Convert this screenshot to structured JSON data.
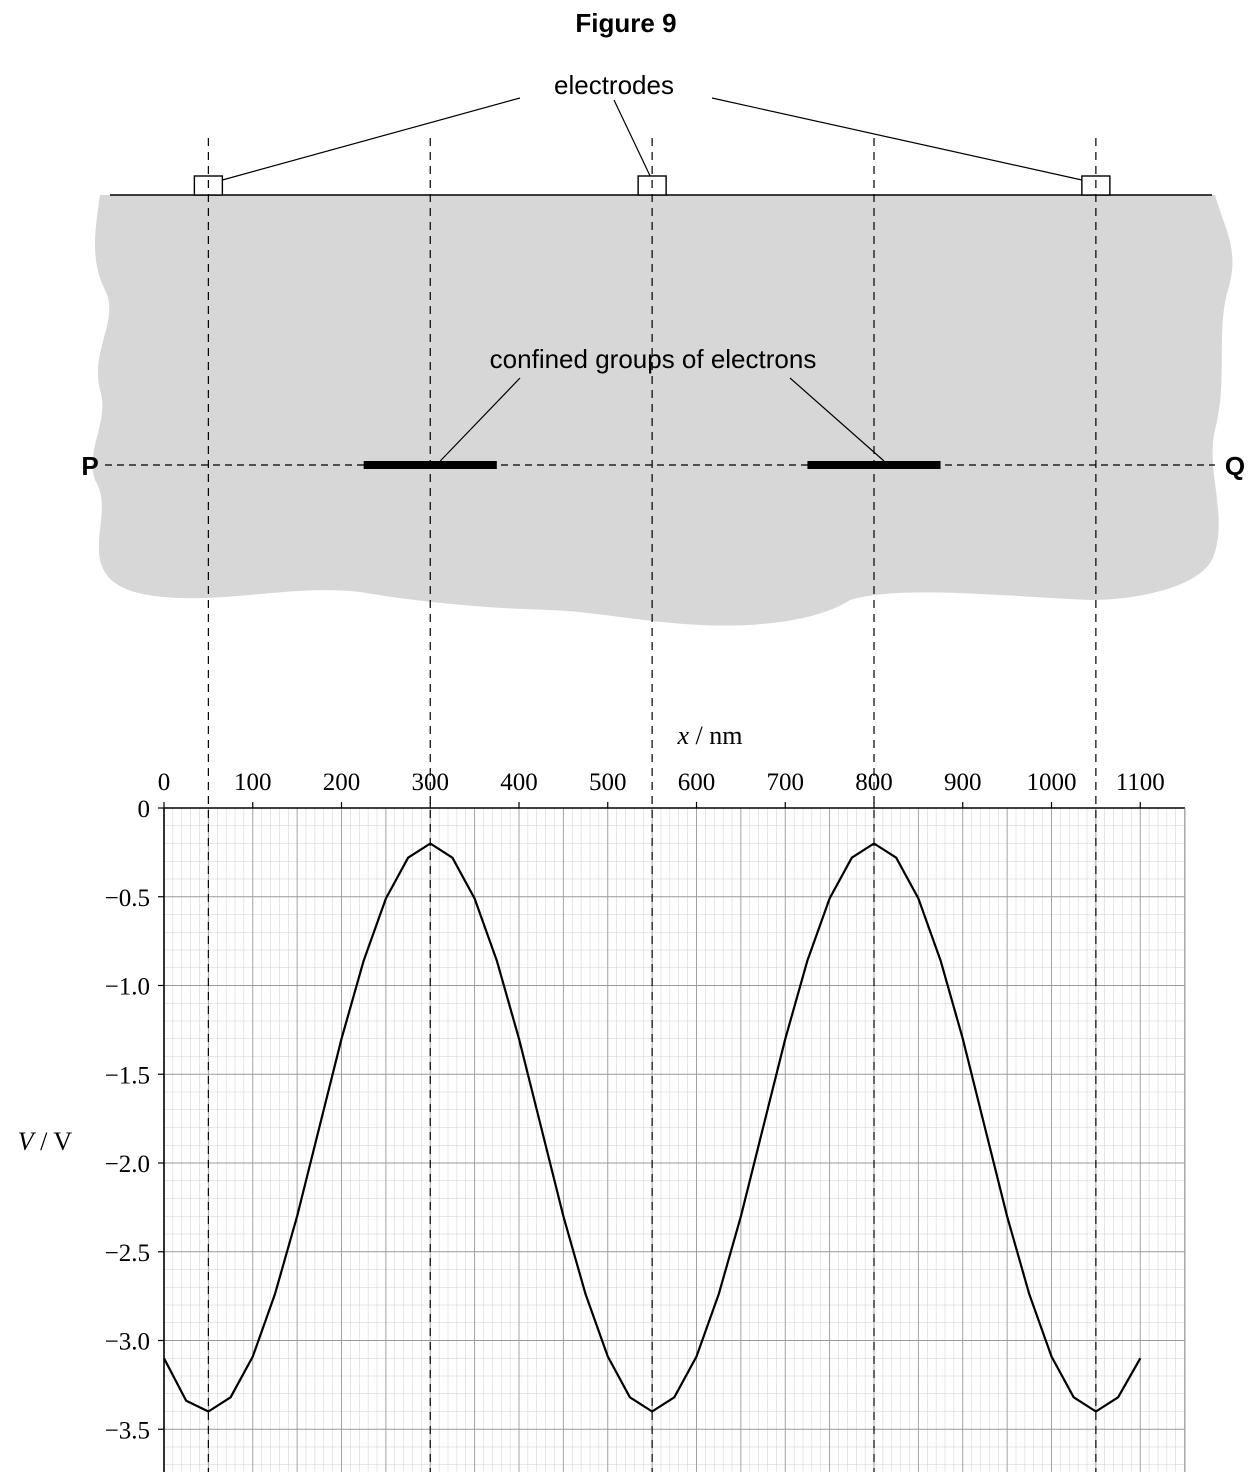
{
  "figure_title": "Figure 9",
  "diagram": {
    "electrodes_label": "electrodes",
    "electrons_label": "confined groups of electrons",
    "left_end_label": "P",
    "right_end_label": "Q"
  },
  "chart_data": {
    "type": "line",
    "title": "",
    "xlabel_var": "x",
    "xlabel_unit": " / nm",
    "ylabel_var": "V",
    "ylabel_unit": " / V",
    "xlim": [
      0,
      1150
    ],
    "ylim": [
      -3.7,
      0
    ],
    "x_ticks": [
      "0",
      "100",
      "200",
      "300",
      "400",
      "500",
      "600",
      "700",
      "800",
      "900",
      "1000",
      "1100"
    ],
    "y_ticks": [
      "0",
      "−0.5",
      "−1.0",
      "−1.5",
      "−2.0",
      "−2.5",
      "−3.0",
      "−3.5"
    ],
    "y_tick_values": [
      0,
      -0.5,
      -1.0,
      -1.5,
      -2.0,
      -2.5,
      -3.0,
      -3.5
    ],
    "series": [
      {
        "x": [
          0,
          25,
          50,
          75,
          100,
          125,
          150,
          175,
          200,
          225,
          250,
          275,
          300,
          325,
          350,
          375,
          400,
          425,
          450,
          475,
          500,
          525,
          550,
          575,
          600,
          625,
          650,
          675,
          700,
          725,
          750,
          775,
          800,
          825,
          850,
          875,
          900,
          925,
          950,
          975,
          1000,
          1025,
          1050,
          1075,
          1100
        ],
        "values": [
          -3.1,
          -3.34,
          -3.4,
          -3.32,
          -3.09,
          -2.74,
          -2.3,
          -1.8,
          -1.3,
          -0.86,
          -0.51,
          -0.28,
          -0.2,
          -0.28,
          -0.51,
          -0.86,
          -1.3,
          -1.8,
          -2.3,
          -2.74,
          -3.09,
          -3.32,
          -3.4,
          -3.32,
          -3.09,
          -2.74,
          -2.3,
          -1.8,
          -1.3,
          -0.86,
          -0.51,
          -0.28,
          -0.2,
          -0.28,
          -0.51,
          -0.86,
          -1.3,
          -1.8,
          -2.3,
          -2.74,
          -3.09,
          -3.32,
          -3.4,
          -3.32,
          -3.1
        ]
      }
    ],
    "guide_lines_x": [
      50,
      300,
      550,
      800,
      1050
    ],
    "electrode_x": [
      50,
      550,
      1050
    ],
    "electron_group_x": [
      300,
      800
    ],
    "electron_group_halfwidth": 75,
    "grid": true
  },
  "colors": {
    "region_fill": "#d7d7d7",
    "grid_minor": "#cfcfcf",
    "grid_major": "#999999",
    "ink": "#000000"
  }
}
